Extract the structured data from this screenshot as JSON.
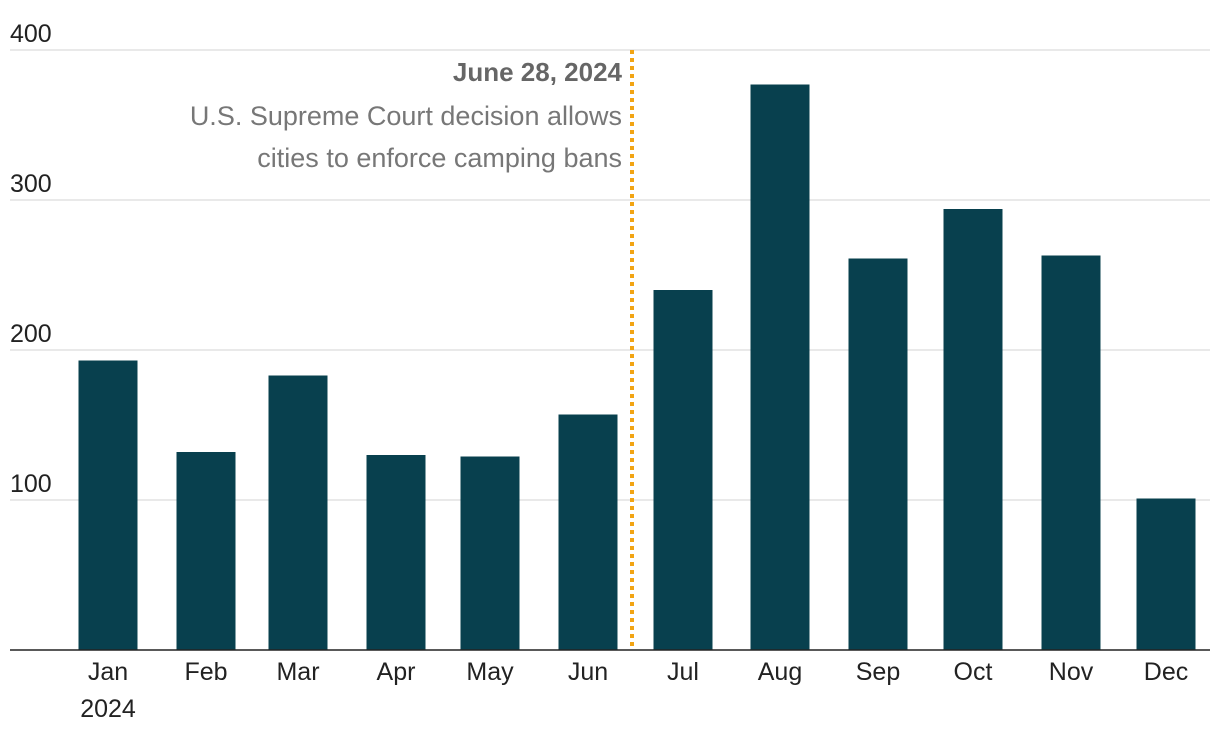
{
  "chart_data": {
    "type": "bar",
    "categories": [
      "Jan",
      "Feb",
      "Mar",
      "Apr",
      "May",
      "Jun",
      "Jul",
      "Aug",
      "Sep",
      "Oct",
      "Nov",
      "Dec"
    ],
    "category_sublabels": [
      "2024",
      "",
      "",
      "",
      "",
      "",
      "",
      "",
      "",
      "",
      "",
      ""
    ],
    "values": [
      193,
      132,
      183,
      130,
      129,
      157,
      240,
      377,
      261,
      294,
      263,
      101
    ],
    "ylim": [
      0,
      400
    ],
    "y_ticks": [
      100,
      200,
      300,
      400
    ],
    "grid": true,
    "bar_color": "#08404e",
    "annotation": {
      "after_category": "Jun",
      "title": "June 28, 2024",
      "lines": [
        "U.S. Supreme Court decision allows",
        "cities to enforce camping bans"
      ],
      "line_color": "#f2a413"
    }
  }
}
